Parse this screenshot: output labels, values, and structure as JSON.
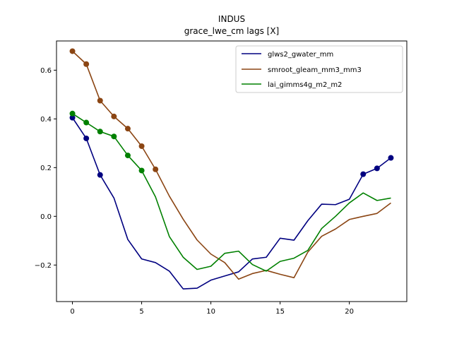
{
  "chart_data": {
    "type": "line",
    "title": "INDUS",
    "subtitle": "grace_lwe_cm lags [X]",
    "xlabel": "",
    "ylabel": "",
    "xlim": [
      -1.15,
      24.15
    ],
    "ylim": [
      -0.35,
      0.72
    ],
    "xticks": [
      0,
      5,
      10,
      15,
      20
    ],
    "yticks": [
      -0.2,
      0.0,
      0.2,
      0.4,
      0.6
    ],
    "ytick_labels": [
      "−0.2",
      "0.0",
      "0.2",
      "0.4",
      "0.6"
    ],
    "grid": false,
    "legend_position": "top-right",
    "x": [
      0,
      1,
      2,
      3,
      4,
      5,
      6,
      7,
      8,
      9,
      10,
      11,
      12,
      13,
      14,
      15,
      16,
      17,
      18,
      19,
      20,
      21,
      22,
      23
    ],
    "series": [
      {
        "name": "glws2_gwater_mm",
        "color": "#000080",
        "values": [
          0.405,
          0.32,
          0.17,
          0.075,
          -0.095,
          -0.175,
          -0.19,
          -0.225,
          -0.298,
          -0.295,
          -0.262,
          -0.245,
          -0.228,
          -0.175,
          -0.168,
          -0.09,
          -0.098,
          -0.018,
          0.05,
          0.048,
          0.07,
          0.173,
          0.197,
          0.24
        ],
        "markers": [
          0,
          1,
          2,
          21,
          22,
          23
        ]
      },
      {
        "name": "smroot_gleam_mm3_mm3",
        "color": "#8B4513",
        "values": [
          0.678,
          0.625,
          0.475,
          0.41,
          0.36,
          0.288,
          0.193,
          0.083,
          -0.012,
          -0.097,
          -0.155,
          -0.19,
          -0.258,
          -0.235,
          -0.222,
          -0.238,
          -0.252,
          -0.147,
          -0.082,
          -0.052,
          -0.013,
          0.0,
          0.012,
          0.055
        ],
        "markers": [
          0,
          1,
          2,
          3,
          4,
          5,
          6
        ]
      },
      {
        "name": "lai_gimms4g_m2_m2",
        "color": "#008000",
        "values": [
          0.422,
          0.385,
          0.348,
          0.328,
          0.25,
          0.188,
          0.08,
          -0.083,
          -0.168,
          -0.218,
          -0.205,
          -0.152,
          -0.143,
          -0.198,
          -0.225,
          -0.185,
          -0.172,
          -0.14,
          -0.05,
          0.0,
          0.055,
          0.096,
          0.065,
          0.075
        ],
        "markers": [
          0,
          1,
          2,
          3,
          4,
          5
        ]
      }
    ]
  }
}
